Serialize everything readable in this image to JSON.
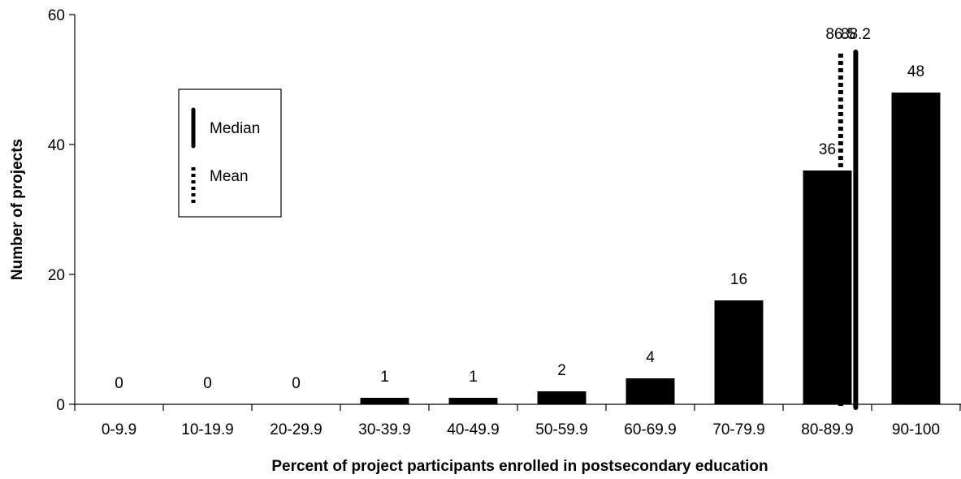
{
  "chart_data": {
    "type": "bar",
    "title": "",
    "xlabel": "Percent of project participants enrolled in postsecondary education",
    "ylabel": "Number of projects",
    "ylim": [
      0,
      60
    ],
    "yticks": [
      "0",
      "20",
      "40",
      "60"
    ],
    "categories": [
      "0-9.9",
      "10-19.9",
      "20-29.9",
      "30-39.9",
      "40-49.9",
      "50-59.9",
      "60-69.9",
      "70-79.9",
      "80-89.9",
      "90-100"
    ],
    "values": [
      0,
      0,
      0,
      1,
      1,
      2,
      4,
      16,
      36,
      48
    ],
    "value_labels": [
      "0",
      "0",
      "0",
      "1",
      "1",
      "2",
      "4",
      "16",
      "36",
      "48"
    ],
    "bar_color": "#000000",
    "grid": false,
    "reference_lines": [
      {
        "name": "Mean",
        "value": 86.5,
        "label": "86.5",
        "style": "dotted"
      },
      {
        "name": "Median",
        "value": 88.2,
        "label": "88.2",
        "style": "solid"
      }
    ],
    "legend": {
      "position": "upper-left",
      "entries": [
        {
          "label": "Median",
          "style": "solid"
        },
        {
          "label": "Mean",
          "style": "dotted"
        }
      ]
    }
  }
}
